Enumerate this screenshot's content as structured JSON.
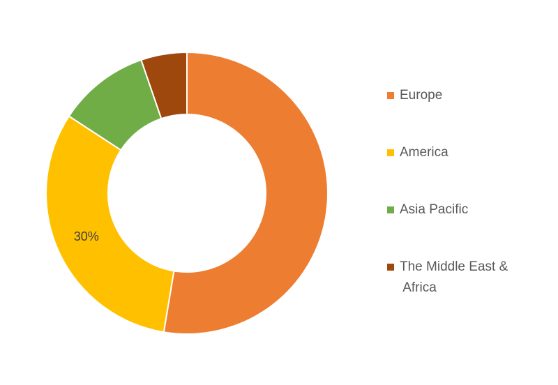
{
  "chart_data": {
    "type": "pie",
    "categories": [
      "Europe",
      "America",
      "Asia Pacific",
      "The Middle East & Africa"
    ],
    "values": [
      50,
      30,
      10,
      5
    ],
    "value_labels": [
      null,
      "30%",
      null,
      null
    ],
    "colors": [
      "#ed7d31",
      "#ffc000",
      "#70ad47",
      "#9e480e"
    ],
    "hole": true,
    "legend": "right"
  }
}
